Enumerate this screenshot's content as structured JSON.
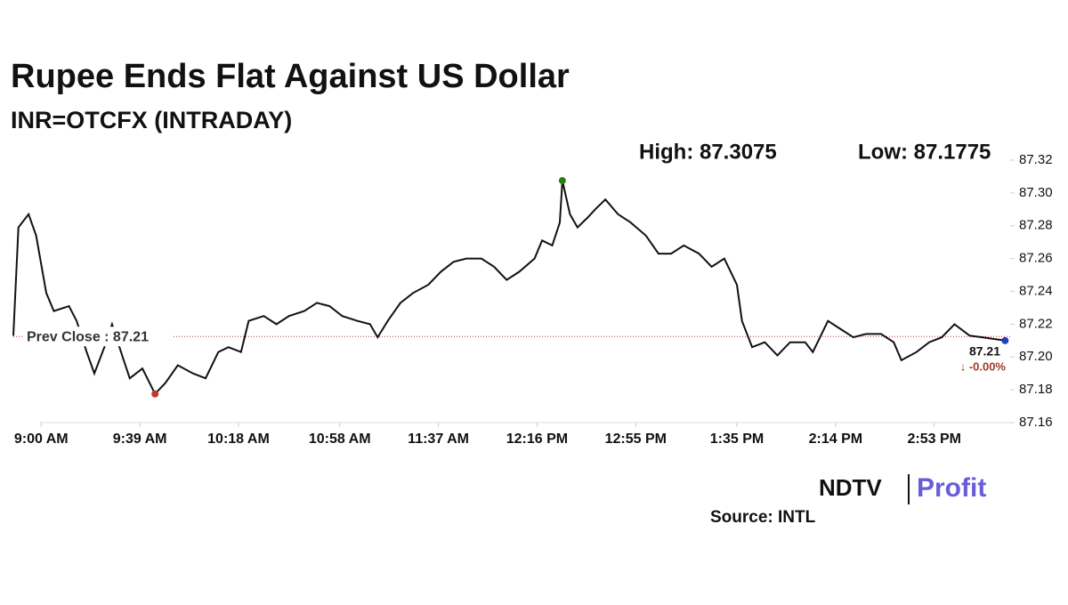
{
  "chart_data": {
    "type": "line",
    "title": "Rupee Ends Flat Against US Dollar",
    "subtitle": "INR=OTCFX (INTRADAY)",
    "high_label": "High: 87.3075",
    "low_label": "Low: 87.1775",
    "prev_close": {
      "value": 87.2125,
      "label": "Prev Close : 87.21"
    },
    "last_label": "87.21",
    "change_label": "↓ -0.00%",
    "source": "Source: INTL",
    "logo": [
      "NDTV",
      "Profit"
    ],
    "series": [
      {
        "name": "INR=OTCFX",
        "color": "#111111",
        "x": [
          -11,
          -9,
          -5,
          -2,
          2,
          5,
          11,
          14,
          18,
          21,
          25,
          28,
          32,
          35,
          40,
          45,
          49,
          54,
          60,
          65,
          70,
          74,
          79,
          82,
          88,
          93,
          98,
          104,
          109,
          114,
          119,
          125,
          130,
          133,
          137,
          142,
          147,
          153,
          158,
          163,
          168,
          174,
          179,
          184,
          189,
          195,
          198,
          202,
          205,
          206,
          209,
          212,
          216,
          219,
          223,
          228,
          233,
          239,
          244,
          249,
          254,
          260,
          265,
          270,
          275,
          277,
          281,
          286,
          291,
          296,
          302,
          305,
          311,
          316,
          321,
          326,
          332,
          337,
          340,
          346,
          351,
          356,
          361,
          367,
          372,
          381
        ],
        "values": [
          87.213,
          87.279,
          87.287,
          87.274,
          87.239,
          87.228,
          87.231,
          87.222,
          87.203,
          87.19,
          87.206,
          87.22,
          87.201,
          87.187,
          87.193,
          87.1775,
          87.184,
          87.195,
          87.19,
          87.187,
          87.203,
          87.206,
          87.203,
          87.222,
          87.225,
          87.22,
          87.225,
          87.228,
          87.233,
          87.231,
          87.225,
          87.222,
          87.22,
          87.212,
          87.222,
          87.233,
          87.239,
          87.244,
          87.252,
          87.258,
          87.26,
          87.26,
          87.255,
          87.247,
          87.252,
          87.26,
          87.271,
          87.268,
          87.282,
          87.3075,
          87.287,
          87.279,
          87.285,
          87.29,
          87.296,
          87.287,
          87.282,
          87.274,
          87.263,
          87.263,
          87.268,
          87.263,
          87.255,
          87.26,
          87.244,
          87.222,
          87.206,
          87.209,
          87.201,
          87.209,
          87.209,
          87.203,
          87.222,
          87.217,
          87.212,
          87.214,
          87.214,
          87.209,
          87.198,
          87.203,
          87.209,
          87.212,
          87.22,
          87.213,
          87.212,
          87.21
        ]
      }
    ],
    "high_index": 49,
    "low_index": 15,
    "high_color": "#2e7d0f",
    "low_color": "#c0392b",
    "last_color": "#1f3fbf",
    "xlim": [
      -11,
      383
    ],
    "xticks": [
      {
        "value": 0,
        "label": "9:00 AM"
      },
      {
        "value": 39,
        "label": "9:39 AM"
      },
      {
        "value": 78,
        "label": "10:18 AM"
      },
      {
        "value": 118,
        "label": "10:58 AM"
      },
      {
        "value": 157,
        "label": "11:37 AM"
      },
      {
        "value": 196,
        "label": "12:16 PM"
      },
      {
        "value": 235,
        "label": "12:55 PM"
      },
      {
        "value": 275,
        "label": "1:35 PM"
      },
      {
        "value": 314,
        "label": "2:14 PM"
      },
      {
        "value": 353,
        "label": "2:53 PM"
      }
    ],
    "ylim": [
      87.16,
      87.32
    ],
    "yticks": [
      87.16,
      87.18,
      {
        "value": 87.2,
        "label": "87.20"
      },
      87.22,
      87.24,
      87.26,
      87.28,
      {
        "value": 87.3,
        "label": "87.30"
      },
      87.32
    ],
    "grid": false
  }
}
